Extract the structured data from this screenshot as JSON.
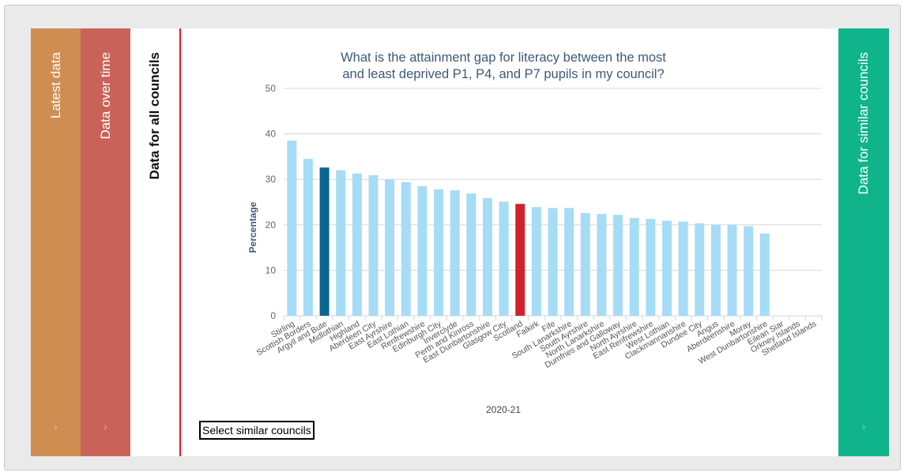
{
  "tabs": {
    "latest": "Latest data",
    "over_time": "Data over time",
    "all_councils": "Data for all councils",
    "similar": "Data for similar councils",
    "chevron": "›"
  },
  "select_button": "Select similar councils",
  "colors": {
    "bar": "#a6dcf5",
    "highlight_council": "#0b6690",
    "scotland": "#d0222a",
    "tab_latest": "#cf8d52",
    "tab_time": "#c9635a",
    "tab_similar": "#10b48a",
    "title": "#3d5a78"
  },
  "chart_data": {
    "type": "bar",
    "title_lines": [
      "What is the attainment gap for literacy between the most",
      "and least deprived P1, P4, and P7 pupils in my council?"
    ],
    "xlabel": "2020-21",
    "ylabel": "Percentage",
    "ylim": [
      0,
      50
    ],
    "yticks": [
      0,
      10,
      20,
      30,
      40,
      50
    ],
    "grid": true,
    "categories": [
      "Stirling",
      "Scottish Borders",
      "Argyll and Bute",
      "Midlothian",
      "Highland",
      "Aberdeen City",
      "East Ayrshire",
      "East Lothian",
      "Renfrewshire",
      "Edinburgh City",
      "Inverclyde",
      "Perth and Kinross",
      "East Dunbartonshire",
      "Glasgow City",
      "Scotland",
      "Falkirk",
      "Fife",
      "South Lanarkshire",
      "South Ayrshire",
      "North Lanarkshire",
      "Dumfries and Galloway",
      "North Ayrshire",
      "East Renfrewshire",
      "West Lothian",
      "Clackmannanshire",
      "Dundee City",
      "Angus",
      "Aberdeenshire",
      "Moray",
      "West Dunbartonshire",
      "Eilean Siar",
      "Orkney Islands",
      "Shetland Islands"
    ],
    "values": [
      38.5,
      34.5,
      32.6,
      32.0,
      31.3,
      30.9,
      30.0,
      29.4,
      28.5,
      27.8,
      27.6,
      26.9,
      25.9,
      25.1,
      24.6,
      23.9,
      23.7,
      23.7,
      22.6,
      22.4,
      22.2,
      21.5,
      21.3,
      20.9,
      20.7,
      20.3,
      20.0,
      20.0,
      19.7,
      18.1,
      null,
      null,
      null
    ],
    "highlight": {
      "Argyll and Bute": "highlight_council",
      "Scotland": "scotland"
    }
  }
}
